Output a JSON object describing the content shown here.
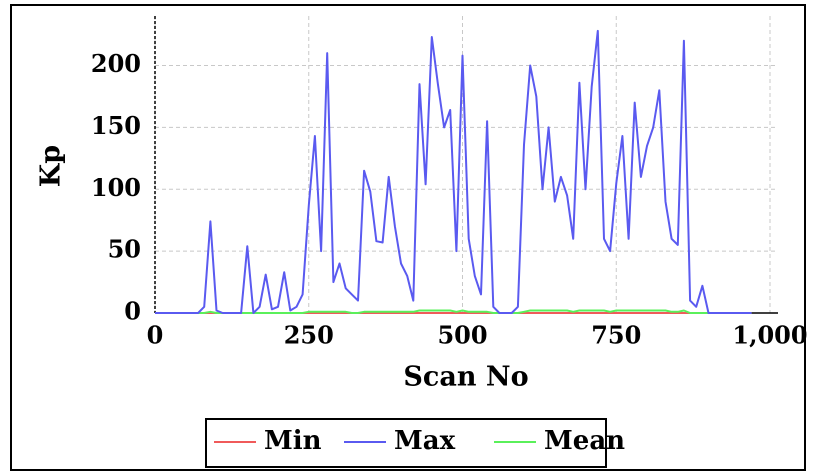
{
  "chart_data": {
    "type": "line",
    "xlabel": "Scan No",
    "ylabel": "Kp",
    "x": [
      0,
      10,
      20,
      30,
      40,
      50,
      60,
      70,
      80,
      90,
      100,
      110,
      120,
      130,
      140,
      150,
      160,
      170,
      180,
      190,
      200,
      210,
      220,
      230,
      240,
      250,
      260,
      270,
      280,
      290,
      300,
      310,
      320,
      330,
      340,
      350,
      360,
      370,
      380,
      390,
      400,
      410,
      420,
      430,
      440,
      450,
      460,
      470,
      480,
      490,
      500,
      510,
      520,
      530,
      540,
      550,
      560,
      570,
      580,
      590,
      600,
      610,
      620,
      630,
      640,
      650,
      660,
      670,
      680,
      690,
      700,
      710,
      720,
      730,
      740,
      750,
      760,
      770,
      780,
      790,
      800,
      810,
      820,
      830,
      840,
      850,
      860,
      870,
      880,
      890,
      900,
      910,
      920,
      930,
      940,
      950,
      960,
      970
    ],
    "series": [
      {
        "name": "Min",
        "color": "#f05a5a",
        "values": [
          0,
          0,
          0,
          0,
          0,
          0,
          0,
          0,
          0,
          0,
          0,
          0,
          0,
          0,
          0,
          0,
          0,
          0,
          0,
          0,
          0,
          0,
          0,
          0,
          0,
          0,
          0,
          0,
          0,
          0,
          0,
          0,
          0,
          0,
          0,
          0,
          0,
          0,
          0,
          0,
          0,
          0,
          0,
          0,
          0,
          0,
          0,
          0,
          0,
          0,
          0,
          0,
          0,
          0,
          0,
          0,
          0,
          0,
          0,
          0,
          0,
          0,
          0,
          0,
          0,
          0,
          0,
          0,
          0,
          0,
          0,
          0,
          0,
          0,
          0,
          0,
          0,
          0,
          0,
          0,
          0,
          0,
          0,
          0,
          0,
          0,
          0,
          0,
          0,
          0,
          0,
          0,
          0,
          0,
          0,
          0,
          0,
          0
        ]
      },
      {
        "name": "Max",
        "color": "#5a5af0",
        "values": [
          0,
          0,
          0,
          0,
          0,
          0,
          0,
          0,
          5,
          74,
          2,
          0,
          0,
          0,
          0,
          54,
          0,
          5,
          31,
          3,
          5,
          33,
          2,
          5,
          15,
          87,
          143,
          50,
          210,
          25,
          40,
          20,
          15,
          10,
          115,
          98,
          58,
          57,
          110,
          70,
          40,
          30,
          10,
          185,
          104,
          223,
          185,
          150,
          164,
          50,
          208,
          60,
          30,
          15,
          155,
          5,
          0,
          0,
          0,
          5,
          136,
          200,
          175,
          100,
          150,
          90,
          110,
          95,
          60,
          186,
          100,
          183,
          228,
          60,
          50,
          105,
          143,
          60,
          170,
          110,
          135,
          150,
          180,
          90,
          60,
          55,
          220,
          10,
          5,
          22,
          0,
          0,
          0,
          0,
          0,
          0,
          0,
          0
        ]
      },
      {
        "name": "Mean",
        "color": "#5af05a",
        "values": [
          0,
          0,
          0,
          0,
          0,
          0,
          0,
          0,
          0,
          1,
          0,
          0,
          0,
          0,
          0,
          0,
          0,
          0,
          0,
          0,
          0,
          0,
          0,
          0,
          0,
          1,
          1,
          1,
          1,
          1,
          1,
          1,
          0,
          0,
          1,
          1,
          1,
          1,
          1,
          1,
          1,
          1,
          1,
          2,
          2,
          2,
          2,
          2,
          2,
          1,
          2,
          1,
          1,
          1,
          1,
          0,
          0,
          0,
          0,
          0,
          1,
          2,
          2,
          2,
          2,
          2,
          2,
          2,
          1,
          2,
          2,
          2,
          2,
          2,
          1,
          2,
          2,
          2,
          2,
          2,
          2,
          2,
          2,
          2,
          1,
          1,
          2,
          0,
          0,
          0,
          0,
          0,
          0,
          0,
          0,
          0,
          0,
          0
        ]
      }
    ],
    "xlim": [
      0,
      1013
    ],
    "ylim": [
      0,
      240
    ],
    "xticks": [
      0,
      250,
      500,
      750,
      {
        "value": 1000,
        "label": "1,000"
      }
    ],
    "yticks": [
      0,
      50,
      100,
      150,
      200
    ],
    "grid": true,
    "legend": "bottom"
  }
}
